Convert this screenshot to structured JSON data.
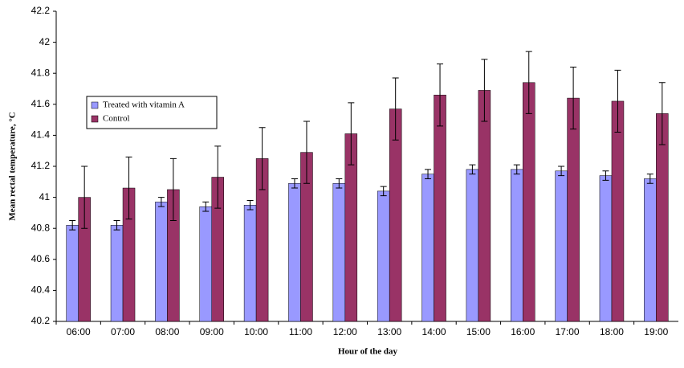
{
  "chart_data": {
    "type": "bar",
    "xlabel": "Hour of the day",
    "ylabel": "Mean rectal temperature, °C",
    "categories": [
      "06:00",
      "07:00",
      "08:00",
      "09:00",
      "10:00",
      "11:00",
      "12:00",
      "13:00",
      "14:00",
      "15:00",
      "16:00",
      "17:00",
      "18:00",
      "19:00"
    ],
    "series": [
      {
        "name": "Treated with vitamin A",
        "color": "#9999ff",
        "values": [
          40.82,
          40.82,
          40.97,
          40.94,
          40.95,
          41.09,
          41.09,
          41.04,
          41.15,
          41.18,
          41.18,
          41.17,
          41.14,
          41.12
        ],
        "errors": [
          0.03,
          0.03,
          0.03,
          0.03,
          0.03,
          0.03,
          0.03,
          0.03,
          0.03,
          0.03,
          0.03,
          0.03,
          0.03,
          0.03
        ]
      },
      {
        "name": "Control",
        "color": "#993366",
        "values": [
          41.0,
          41.06,
          41.05,
          41.13,
          41.25,
          41.29,
          41.41,
          41.57,
          41.66,
          41.69,
          41.74,
          41.64,
          41.62,
          41.54
        ],
        "errors": [
          0.2,
          0.2,
          0.2,
          0.2,
          0.2,
          0.2,
          0.2,
          0.2,
          0.2,
          0.2,
          0.2,
          0.2,
          0.2,
          0.2
        ]
      }
    ],
    "ylim": [
      40.2,
      42.2
    ],
    "yticks": [
      40.2,
      40.4,
      40.6,
      40.8,
      41,
      41.2,
      41.4,
      41.6,
      41.8,
      42,
      42.2
    ],
    "grid": false,
    "legend": "upper left"
  }
}
